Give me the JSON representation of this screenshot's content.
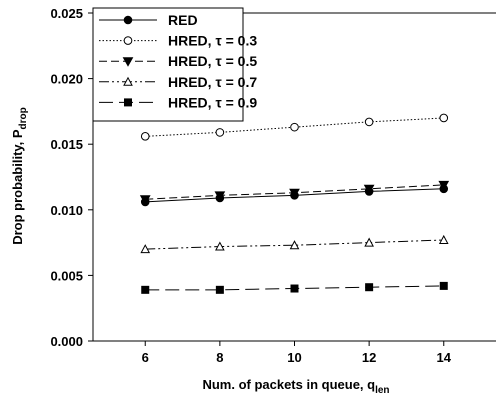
{
  "chart_data": {
    "type": "line",
    "xlabel": "Num. of packets in queue, q",
    "xlabel_sub": "len",
    "ylabel": "Drop probability, P",
    "ylabel_sub": "drop",
    "x": [
      6,
      8,
      10,
      12,
      14
    ],
    "xlim": [
      4.6,
      15.4
    ],
    "ylim": [
      0.0,
      0.025
    ],
    "x_ticks": [
      6,
      8,
      10,
      12,
      14
    ],
    "y_ticks": [
      0.0,
      0.005,
      0.01,
      0.015,
      0.02,
      0.025
    ],
    "x_tick_labels": [
      "6",
      "8",
      "10",
      "12",
      "14"
    ],
    "y_tick_labels": [
      "0.000",
      "0.005",
      "0.010",
      "0.015",
      "0.020",
      "0.025"
    ],
    "grid": false,
    "legend_position": "top-left",
    "series": [
      {
        "name": "RED",
        "values": [
          0.0106,
          0.0109,
          0.0111,
          0.0114,
          0.0116
        ],
        "marker": "filled-circle",
        "dash": "solid"
      },
      {
        "name": "HRED, τ = 0.3",
        "values": [
          0.0156,
          0.0159,
          0.0163,
          0.0167,
          0.017
        ],
        "marker": "open-circle",
        "dash": "dotted"
      },
      {
        "name": "HRED, τ = 0.5",
        "values": [
          0.0108,
          0.0111,
          0.0113,
          0.0116,
          0.0119
        ],
        "marker": "filled-triangle-down",
        "dash": "dashed"
      },
      {
        "name": "HRED, τ = 0.7",
        "values": [
          0.007,
          0.0072,
          0.0073,
          0.0075,
          0.0077
        ],
        "marker": "open-triangle-up",
        "dash": "dash-dot-dot"
      },
      {
        "name": "HRED, τ = 0.9",
        "values": [
          0.0039,
          0.0039,
          0.004,
          0.0041,
          0.0042
        ],
        "marker": "filled-square",
        "dash": "long-dash"
      }
    ]
  }
}
